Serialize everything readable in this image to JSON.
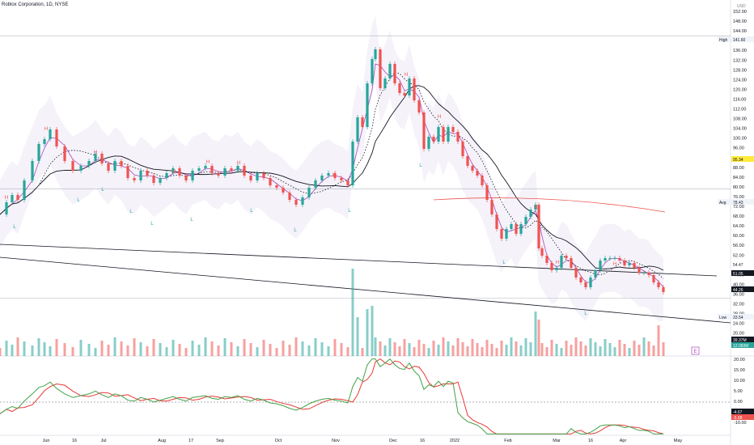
{
  "header": {
    "title": "Roblox Corporation, 1D, NYSE"
  },
  "chart_data": {
    "type": "line",
    "currency_label": "USD",
    "y_ticks_price": [
      "152.00",
      "148.00",
      "144.00",
      "140.00",
      "136.00",
      "132.00",
      "128.00",
      "124.00",
      "120.00",
      "116.00",
      "112.00",
      "108.00",
      "104.00",
      "100.00",
      "96.00",
      "92.00",
      "88.00",
      "84.00",
      "80.00",
      "76.00",
      "72.00",
      "68.00",
      "64.00",
      "60.00",
      "56.00",
      "52.00",
      "48.00",
      "44.00",
      "40.00",
      "36.00",
      "32.00",
      "28.00",
      "24.00",
      "20.00"
    ],
    "y_ticks_osc": [
      "20.00",
      "15.00",
      "10.00",
      "5.00",
      "0.00",
      "-5.00",
      "-10.00"
    ],
    "x_ticks": [
      "Jun",
      "16",
      "Jul",
      "Aug",
      "17",
      "Sep",
      "Oct",
      "Nov",
      "Dec",
      "16",
      "2022",
      "Feb",
      "Mar",
      "16",
      "Apr",
      "May"
    ],
    "price_labels": [
      {
        "text": "High",
        "value": "141.60"
      },
      {
        "text": "Avg",
        "value": "78.43"
      },
      {
        "text": "Low",
        "value": "33.54"
      },
      {
        "value": "95.34"
      },
      {
        "value": "54.47"
      },
      {
        "value": "51.05"
      },
      {
        "value": "44.26"
      },
      {
        "value": "39.37M"
      },
      {
        "value": "12.083M"
      }
    ],
    "osc_labels": [
      {
        "value": "-4.67"
      },
      {
        "value": "-5.68"
      }
    ],
    "pattern_labels": [
      "H",
      "L"
    ],
    "event_markers": [
      "E"
    ],
    "series": [
      {
        "points": [
          [
            0,
            68
          ],
          [
            8,
            73
          ],
          [
            15,
            76
          ],
          [
            22,
            74
          ],
          [
            30,
            82
          ],
          [
            40,
            90
          ],
          [
            48,
            97
          ],
          [
            55,
            99
          ],
          [
            62,
            103
          ],
          [
            70,
            96
          ],
          [
            80,
            90
          ],
          [
            90,
            86
          ],
          [
            100,
            88
          ],
          [
            110,
            90
          ],
          [
            118,
            93
          ],
          [
            126,
            89
          ],
          [
            134,
            86
          ],
          [
            142,
            90
          ],
          [
            150,
            88
          ],
          [
            158,
            83
          ],
          [
            166,
            82
          ],
          [
            174,
            86
          ],
          [
            182,
            84
          ],
          [
            190,
            81
          ],
          [
            198,
            83
          ],
          [
            206,
            85
          ],
          [
            214,
            87
          ],
          [
            222,
            84
          ],
          [
            230,
            82
          ],
          [
            238,
            86
          ],
          [
            246,
            87
          ],
          [
            254,
            88
          ],
          [
            262,
            85
          ],
          [
            270,
            84
          ],
          [
            278,
            87
          ],
          [
            286,
            86
          ],
          [
            294,
            88
          ],
          [
            302,
            84
          ],
          [
            310,
            82
          ],
          [
            318,
            85
          ],
          [
            326,
            83
          ],
          [
            334,
            80
          ],
          [
            342,
            79
          ],
          [
            350,
            77
          ],
          [
            358,
            74
          ],
          [
            366,
            72
          ],
          [
            374,
            75
          ],
          [
            382,
            79
          ],
          [
            390,
            82
          ],
          [
            398,
            84
          ],
          [
            406,
            85
          ],
          [
            414,
            83
          ],
          [
            422,
            82
          ],
          [
            430,
            80
          ],
          [
            436,
            98
          ],
          [
            442,
            108
          ],
          [
            448,
            104
          ],
          [
            454,
            122
          ],
          [
            460,
            132
          ],
          [
            464,
            136
          ],
          [
            470,
            120
          ],
          [
            476,
            124
          ],
          [
            482,
            130
          ],
          [
            488,
            122
          ],
          [
            494,
            118
          ],
          [
            500,
            117
          ],
          [
            506,
            124
          ],
          [
            512,
            115
          ],
          [
            518,
            110
          ],
          [
            524,
            95
          ],
          [
            530,
            100
          ],
          [
            536,
            98
          ],
          [
            542,
            104
          ],
          [
            548,
            98
          ],
          [
            554,
            104
          ],
          [
            560,
            102
          ],
          [
            566,
            98
          ],
          [
            572,
            92
          ],
          [
            578,
            88
          ],
          [
            584,
            86
          ],
          [
            590,
            84
          ],
          [
            596,
            80
          ],
          [
            602,
            74
          ],
          [
            608,
            68
          ],
          [
            614,
            62
          ],
          [
            620,
            58
          ],
          [
            626,
            62
          ],
          [
            632,
            64
          ],
          [
            638,
            60
          ],
          [
            644,
            64
          ],
          [
            650,
            67
          ],
          [
            656,
            70
          ],
          [
            662,
            72
          ],
          [
            666,
            54
          ],
          [
            670,
            51
          ],
          [
            676,
            48
          ],
          [
            682,
            45
          ],
          [
            688,
            46
          ],
          [
            694,
            51
          ],
          [
            700,
            50
          ],
          [
            706,
            46
          ],
          [
            712,
            42
          ],
          [
            718,
            40
          ],
          [
            724,
            38
          ],
          [
            730,
            42
          ],
          [
            736,
            45
          ],
          [
            742,
            49
          ],
          [
            748,
            50
          ],
          [
            754,
            50
          ],
          [
            760,
            50
          ],
          [
            766,
            49
          ],
          [
            772,
            47
          ],
          [
            778,
            48
          ],
          [
            784,
            46
          ],
          [
            790,
            44
          ],
          [
            796,
            44
          ],
          [
            802,
            43
          ],
          [
            808,
            40
          ],
          [
            814,
            38
          ],
          [
            820,
            36
          ]
        ]
      }
    ]
  }
}
